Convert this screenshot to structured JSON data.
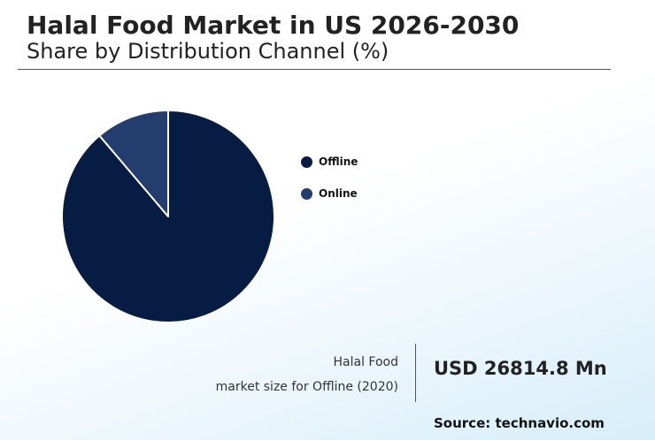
{
  "header": {
    "title": "Halal Food Market in US 2026-2030",
    "subtitle": "Share by Distribution Channel (%)"
  },
  "chart_data": {
    "type": "pie",
    "categories": [
      "Offline",
      "Online"
    ],
    "values": [
      88.8,
      11.2
    ],
    "colors": [
      "#071c43",
      "#233d6e"
    ],
    "legend_position": "right"
  },
  "highlight": {
    "caption_line1": "Halal Food",
    "caption_line2": "market size for Offline (2020)",
    "value": "USD 26814.8 Mn"
  },
  "footer": {
    "source": "Source: technavio.com"
  }
}
